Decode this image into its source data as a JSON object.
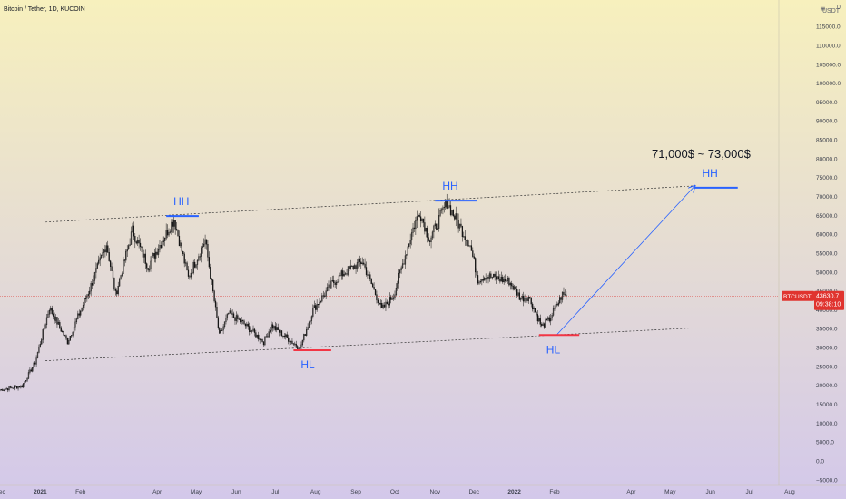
{
  "header": {
    "symbol_title": "Bitcoin / Tether, 1D, KUCOIN",
    "currency": "USDT",
    "menu_glyph": "≡"
  },
  "colors": {
    "bg_top": "#f7f0bd",
    "bg_bottom": "#d3c8ea",
    "annotation_blue": "#2962ff",
    "annotation_red": "#f23645",
    "price_tag_red": "#e0342f",
    "candle_up": "#111111",
    "candle_down": "#111111"
  },
  "chart_data": {
    "type": "candlestick",
    "title": "Bitcoin / Tether, 1D, KUCOIN",
    "x_labels": [
      "Dec",
      "2021",
      "Feb",
      "Apr",
      "May",
      "Jun",
      "Jul",
      "Aug",
      "Sep",
      "Oct",
      "Nov",
      "Dec",
      "2022",
      "Feb",
      "Apr",
      "May",
      "Jun",
      "Jul",
      "Aug"
    ],
    "x_label_months": [
      "2020-12",
      "2021-01",
      "2021-02",
      "2021-04",
      "2021-05",
      "2021-06",
      "2021-07",
      "2021-08",
      "2021-09",
      "2021-10",
      "2021-11",
      "2021-12",
      "2022-01",
      "2022-02",
      "2022-04",
      "2022-05",
      "2022-06",
      "2022-07",
      "2022-08"
    ],
    "y_ticks": [
      -5000,
      0,
      5000,
      10000,
      15000,
      20000,
      25000,
      30000,
      35000,
      40000,
      45000,
      50000,
      55000,
      60000,
      65000,
      70000,
      75000,
      80000,
      85000,
      90000,
      95000,
      100000,
      105000,
      110000,
      115000
    ],
    "y_tick_labels": [
      "−5000.0",
      "0.0",
      "5000.0",
      "10000.0",
      "15000.0",
      "20000.0",
      "25000.0",
      "30000.0",
      "35000.0",
      "40000.0",
      "45000.0",
      "50000.0",
      "55000.0",
      "60000.0",
      "65000.0",
      "70000.0",
      "75000.0",
      "80000.0",
      "85000.0",
      "90000.0",
      "95000.0",
      "100000.0",
      "105000.0",
      "110000.0",
      "115000.0"
    ],
    "ylim": [
      -6500,
      122000
    ],
    "xlim": [
      "2020-12-01",
      "2022-08-15"
    ],
    "grid": false,
    "series": [
      {
        "price_path": [
          [
            "2020-12-01",
            18800
          ],
          [
            "2020-12-18",
            19800
          ],
          [
            "2020-12-28",
            26000
          ],
          [
            "2021-01-08",
            40500
          ],
          [
            "2021-01-22",
            31500
          ],
          [
            "2021-02-08",
            45500
          ],
          [
            "2021-02-21",
            57500
          ],
          [
            "2021-02-28",
            44000
          ],
          [
            "2021-03-13",
            61000
          ],
          [
            "2021-03-25",
            51500
          ],
          [
            "2021-04-14",
            64000
          ],
          [
            "2021-04-25",
            48500
          ],
          [
            "2021-05-08",
            58500
          ],
          [
            "2021-05-19",
            33000
          ],
          [
            "2021-05-26",
            39000
          ],
          [
            "2021-06-06",
            36500
          ],
          [
            "2021-06-22",
            31500
          ],
          [
            "2021-06-28",
            35800
          ],
          [
            "2021-07-20",
            29800
          ],
          [
            "2021-07-30",
            40000
          ],
          [
            "2021-08-14",
            47000
          ],
          [
            "2021-08-23",
            49800
          ],
          [
            "2021-09-06",
            52800
          ],
          [
            "2021-09-21",
            40000
          ],
          [
            "2021-09-30",
            43800
          ],
          [
            "2021-10-15",
            61500
          ],
          [
            "2021-10-20",
            66000
          ],
          [
            "2021-10-28",
            58500
          ],
          [
            "2021-11-10",
            68500
          ],
          [
            "2021-11-28",
            57000
          ],
          [
            "2021-12-04",
            48000
          ],
          [
            "2021-12-10",
            49000
          ],
          [
            "2021-12-28",
            47500
          ],
          [
            "2022-01-06",
            43000
          ],
          [
            "2022-01-12",
            43500
          ],
          [
            "2022-01-22",
            35500
          ],
          [
            "2022-01-28",
            37500
          ],
          [
            "2022-02-07",
            44000
          ],
          [
            "2022-02-10",
            43630
          ]
        ],
        "last_price": 43630.7,
        "last_price_label": "43630.7",
        "countdown": "09:38:10",
        "ticker_label": "BTCUSDT"
      }
    ],
    "annotations": {
      "upper_trendline": [
        [
          "2021-01-05",
          63200
        ],
        [
          "2022-05-20",
          72800
        ]
      ],
      "lower_trendline": [
        [
          "2021-01-05",
          26500
        ],
        [
          "2022-05-20",
          35200
        ]
      ],
      "projection_arrow": [
        [
          "2022-02-03",
          33500
        ],
        [
          "2022-05-20",
          72800
        ]
      ],
      "hh_lines": [
        {
          "from": "2021-04-08",
          "to": "2021-05-03",
          "price": 64800,
          "label": "HH"
        },
        {
          "from": "2021-11-01",
          "to": "2021-12-03",
          "price": 68900,
          "label": "HH"
        },
        {
          "from": "2022-05-20",
          "to": "2022-06-22",
          "price": 72300,
          "label": "HH"
        }
      ],
      "hl_lines": [
        {
          "from": "2021-07-15",
          "to": "2021-08-13",
          "price": 29300,
          "label": "HL"
        },
        {
          "from": "2022-01-20",
          "to": "2022-02-20",
          "price": 33300,
          "label": "HL"
        }
      ],
      "target_text": "71,000$ ~ 73,000$"
    }
  }
}
